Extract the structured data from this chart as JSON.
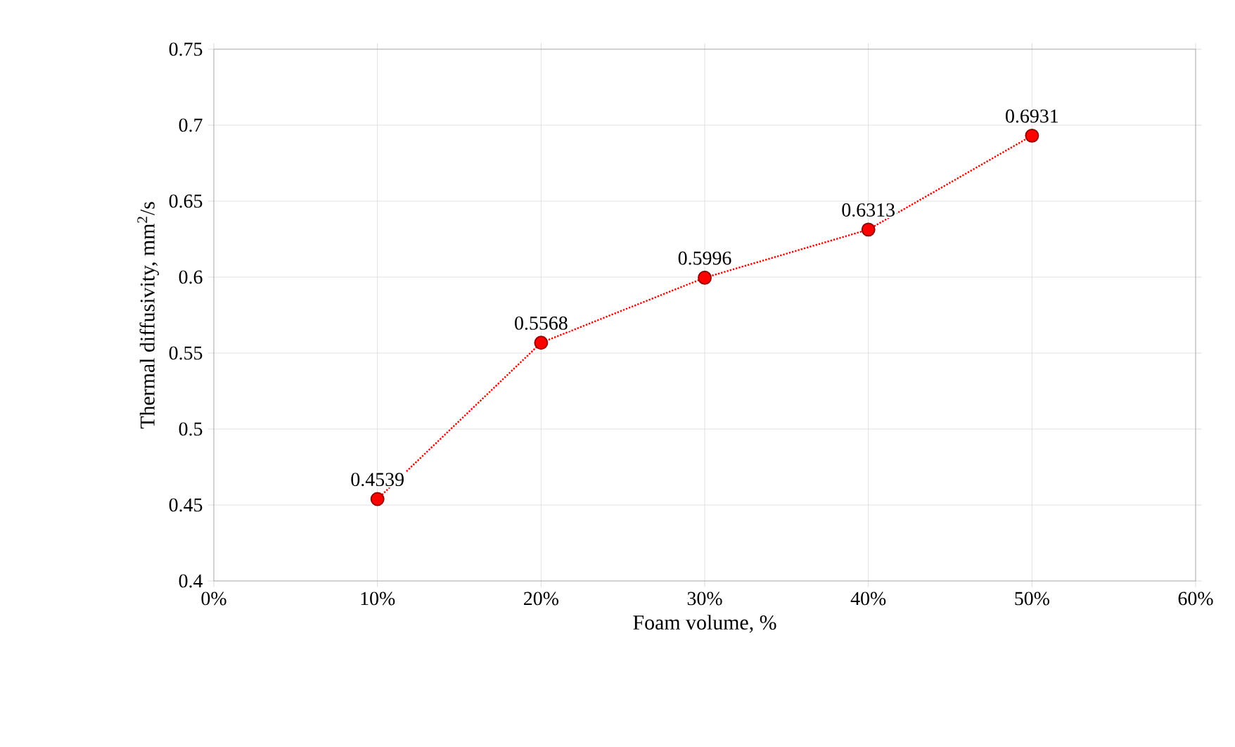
{
  "chart_data": {
    "type": "line",
    "xlabel": "Foam volume, %",
    "ylabel": "Thermal diffusivity, mm$^{2}$/s",
    "x": [
      10,
      20,
      30,
      40,
      50
    ],
    "series": [
      {
        "color": "#ff0000",
        "values": [
          0.4539,
          0.5568,
          0.5996,
          0.6313,
          0.6931
        ]
      }
    ],
    "xlim": [
      0,
      60
    ],
    "xticks": [
      {
        "value": 0,
        "label": "0%"
      },
      {
        "value": 10,
        "label": "10%"
      },
      {
        "value": 20,
        "label": "20%"
      },
      {
        "value": 30,
        "label": "30%"
      },
      {
        "value": 40,
        "label": "40%"
      },
      {
        "value": 50,
        "label": "50%"
      },
      {
        "value": 60,
        "label": "60%"
      }
    ],
    "ylim": [
      0.4,
      0.75
    ],
    "yticks": [
      0.4,
      0.45,
      0.5,
      0.55,
      0.6,
      0.65,
      0.7,
      0.75
    ],
    "grid": true,
    "marker": "circle",
    "line_style": "dotted",
    "data_labels": true
  }
}
